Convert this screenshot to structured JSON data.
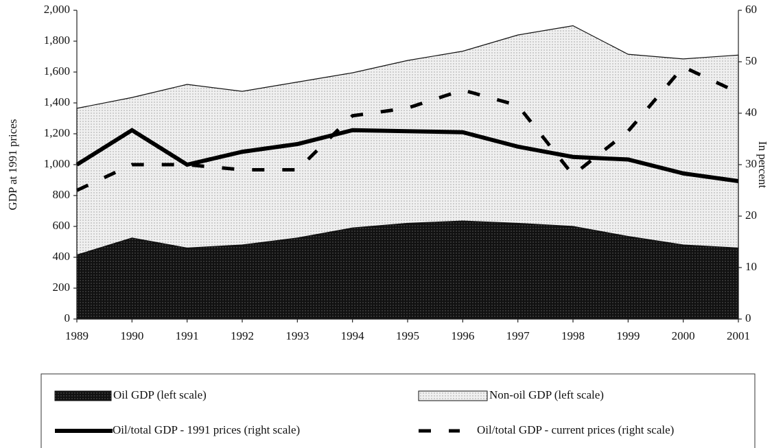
{
  "chart_data": {
    "type": "area",
    "y_label": "GDP at 1991 prices",
    "y2_label": "In percent",
    "x": [
      1989,
      1990,
      1991,
      1992,
      1993,
      1994,
      1995,
      1996,
      1997,
      1998,
      1999,
      2000,
      2001
    ],
    "xlim": [
      1989,
      2001
    ],
    "ylim": [
      0,
      2000
    ],
    "yticks": [
      0,
      200,
      400,
      600,
      800,
      {
        "value": 1000,
        "label": "1,000"
      },
      {
        "value": 1200,
        "label": "1,200"
      },
      {
        "value": 1400,
        "label": "1,400"
      },
      {
        "value": 1600,
        "label": "1,600"
      },
      {
        "value": 1800,
        "label": "1,800"
      },
      {
        "value": 2000,
        "label": "2,000"
      }
    ],
    "y2lim": [
      0,
      60
    ],
    "y2ticks": [
      0,
      10,
      20,
      30,
      40,
      50,
      60
    ],
    "stacked": true,
    "series": [
      {
        "name": "Oil GDP (left scale)",
        "color": "#111111",
        "kind": "area",
        "values": [
          415,
          525,
          460,
          480,
          525,
          590,
          620,
          635,
          620,
          600,
          535,
          480,
          460
        ]
      },
      {
        "name": "Non-oil GDP (left scale)",
        "color": "#f0f0f0",
        "kind": "area",
        "values": [
          950,
          910,
          1060,
          995,
          1010,
          1005,
          1055,
          1100,
          1220,
          1300,
          1180,
          1205,
          1250
        ]
      },
      {
        "name": "Oil/total GDP - 1991 prices (right scale)",
        "color": "#000000",
        "kind": "line",
        "dash": false,
        "axis": "y2",
        "values": [
          30,
          36.7,
          30,
          32.5,
          34,
          36.7,
          36.5,
          36.3,
          33.5,
          31.5,
          31,
          28.3,
          26.8
        ]
      },
      {
        "name": "Oil/total GDP - current prices (right scale)",
        "color": "#000000",
        "kind": "line",
        "dash": true,
        "axis": "y2",
        "values": [
          25,
          30,
          30,
          29,
          29,
          39.5,
          41,
          44.5,
          41.5,
          28,
          36.5,
          49,
          44
        ]
      }
    ]
  }
}
